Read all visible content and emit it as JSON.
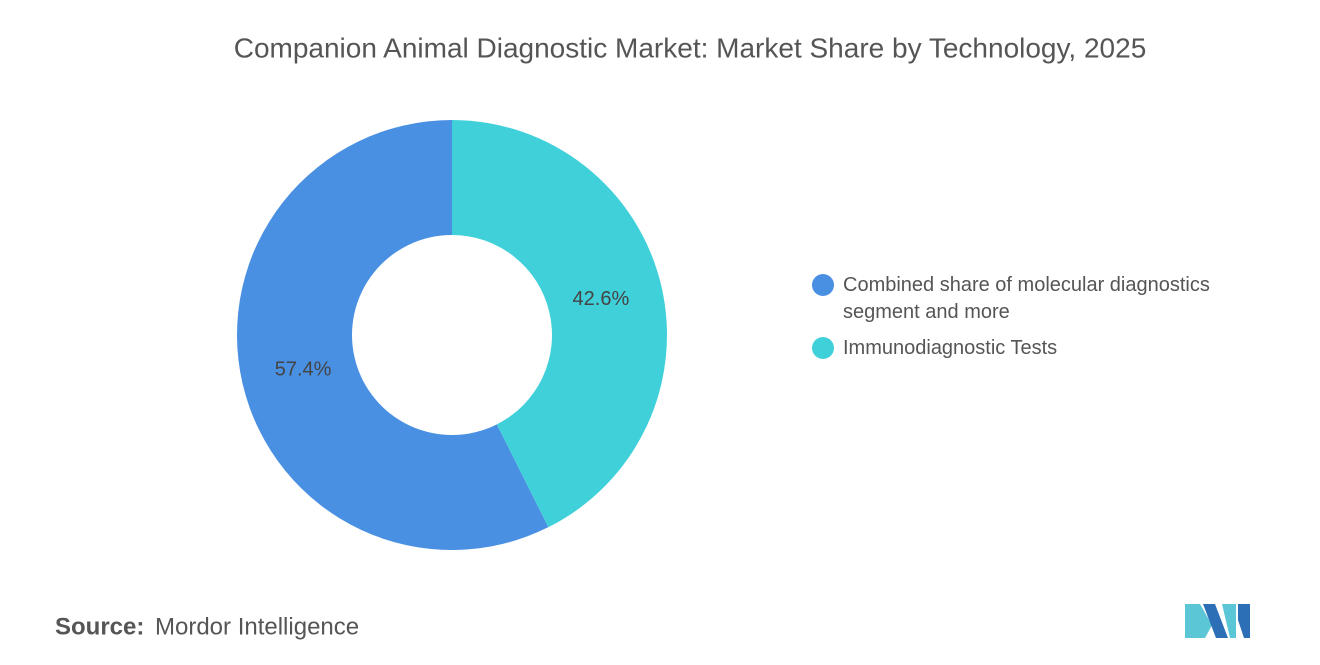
{
  "chart_data": {
    "type": "donut",
    "title": "Companion Animal Diagnostic Market: Market Share by Technology, 2025",
    "categories": [
      "Combined share of molecular diagnostics segment and more",
      "Immunodiagnostic Tests"
    ],
    "values": [
      57.4,
      42.6
    ],
    "value_labels": [
      "57.4%",
      "42.6%"
    ],
    "colors": [
      "#4a90e2",
      "#40d0da"
    ],
    "legend": "right",
    "source_label": "Source:",
    "source": "Mordor Intelligence"
  }
}
